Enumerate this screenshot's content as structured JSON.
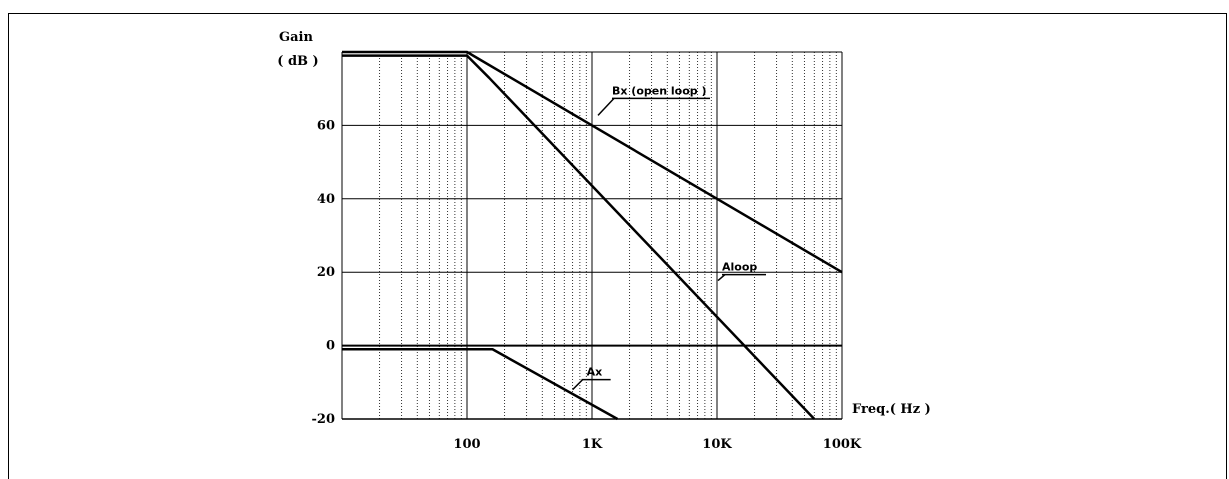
{
  "chart_data": {
    "type": "line",
    "x_scale": "log",
    "xlim": [
      10,
      100000
    ],
    "ylim": [
      -20,
      80
    ],
    "y_label_line1": "Gain",
    "y_label_line2": "( dB )",
    "x_label": "Freq.( Hz )",
    "y_ticks": [
      {
        "value": 60,
        "label": "60"
      },
      {
        "value": 40,
        "label": "40"
      },
      {
        "value": 20,
        "label": "20"
      },
      {
        "value": 0,
        "label": "0"
      },
      {
        "value": -20,
        "label": "-20"
      }
    ],
    "x_ticks": [
      {
        "value": 100,
        "label": "100"
      },
      {
        "value": 1000,
        "label": "1K"
      },
      {
        "value": 10000,
        "label": "10K"
      },
      {
        "value": 100000,
        "label": "100K"
      }
    ],
    "grid": true,
    "series": [
      {
        "name": "Bx (open loop)",
        "points": [
          [
            10,
            80
          ],
          [
            100,
            80
          ],
          [
            100000,
            20
          ]
        ]
      },
      {
        "name": "Aloop",
        "points": [
          [
            10,
            79
          ],
          [
            100,
            79
          ],
          [
            150,
            73
          ],
          [
            60000,
            -20
          ]
        ]
      },
      {
        "name": "Ax",
        "points": [
          [
            10,
            -1
          ],
          [
            160,
            -1
          ],
          [
            1600,
            -20
          ]
        ]
      }
    ],
    "annotations": [
      {
        "text": "Bx (open loop )",
        "x": 1000,
        "y": 60
      },
      {
        "text": "Aloop",
        "x": 10000,
        "y": 9
      },
      {
        "text": "Ax",
        "x": 700,
        "y": -12
      }
    ]
  }
}
